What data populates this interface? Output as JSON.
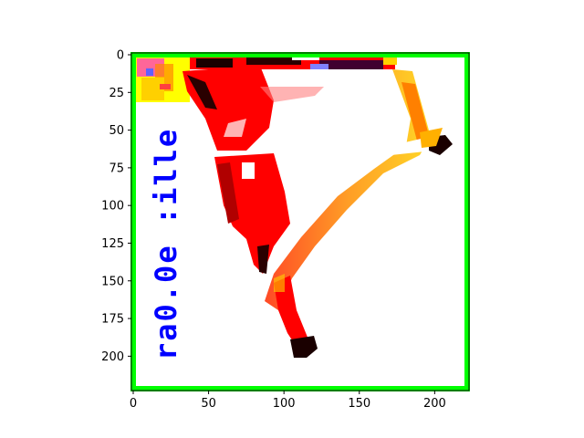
{
  "figure": {
    "image": {
      "description_icon": "image-frame-icon",
      "colors": {
        "border": "#00ff00",
        "figure_red": "#ff0000",
        "background": "#ffffff",
        "text_blue": "#0000ff",
        "dark": "#1a0000",
        "yellow": "#ffff00",
        "magenta": "#ff00ff"
      },
      "overlay_text": "ra0.0e :ille",
      "overlay_chars": [
        "r",
        "a",
        "0",
        ".",
        "0",
        "e",
        " ",
        ":",
        "i",
        "l",
        "l",
        "e"
      ]
    },
    "x_axis": {
      "ticks": [
        "0",
        "50",
        "100",
        "150",
        "200"
      ],
      "tick_values": [
        0,
        50,
        100,
        150,
        200
      ],
      "range": [
        0,
        224
      ]
    },
    "y_axis": {
      "ticks": [
        "0",
        "25",
        "50",
        "75",
        "100",
        "125",
        "150",
        "175",
        "200"
      ],
      "tick_values": [
        0,
        25,
        50,
        75,
        100,
        125,
        150,
        175,
        200
      ],
      "range": [
        0,
        224
      ]
    }
  }
}
